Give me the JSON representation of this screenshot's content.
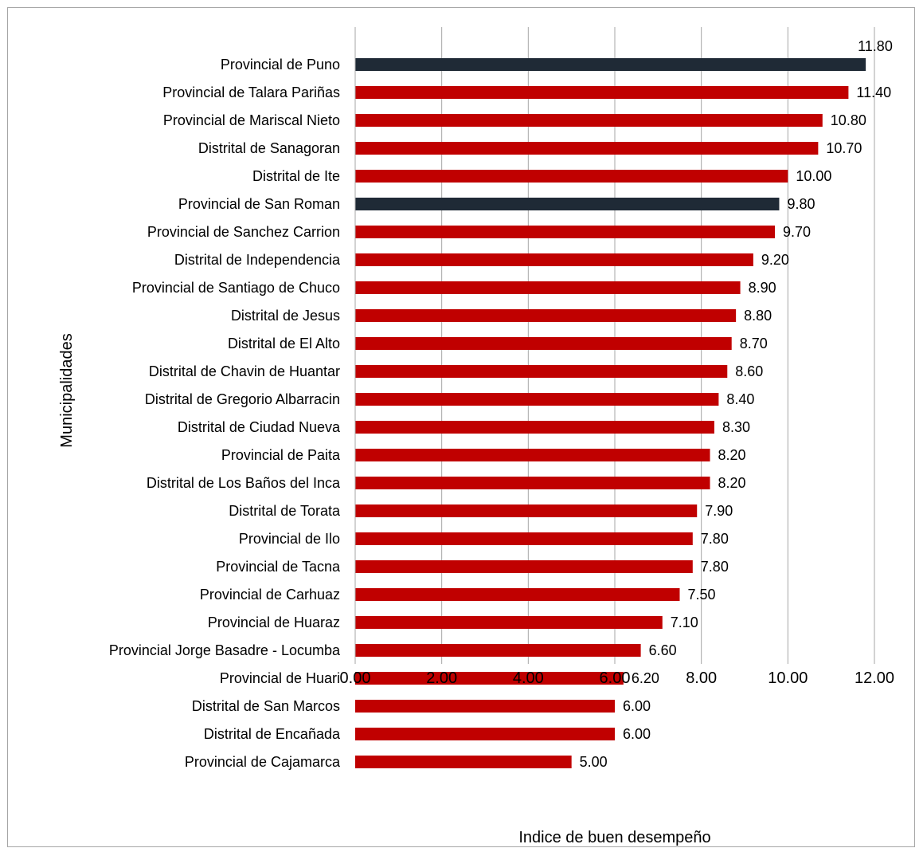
{
  "chart_data": {
    "type": "bar",
    "orientation": "horizontal",
    "title": "",
    "xlabel": "Indice de buen desempeño",
    "ylabel": "Municipalidades",
    "xlim": [
      0,
      12
    ],
    "xticks": [
      "0.00",
      "2.00",
      "4.00",
      "6.00",
      "8.00",
      "10.00",
      "12.00"
    ],
    "grid": "vertical",
    "legend": "none",
    "colors": {
      "default": "#c00000",
      "highlight": "#1f2a36",
      "grid": "#a6a6a6"
    },
    "categories": [
      "Provincial de Puno",
      "Provincial de Talara Pariñas",
      "Provincial de Mariscal Nieto",
      "Distrital de Sanagoran",
      "Distrital de Ite",
      "Provincial de San Roman",
      "Provincial de Sanchez Carrion",
      "Distrital de Independencia",
      "Provincial de Santiago de Chuco",
      "Distrital de Jesus",
      "Distrital de El Alto",
      "Distrital de Chavin de Huantar",
      "Distrital de Gregorio Albarracin",
      "Distrital de Ciudad Nueva",
      "Provincial de Paita",
      "Distrital de Los Baños del Inca",
      "Distrital de Torata",
      "Provincial de Ilo",
      "Provincial de Tacna",
      "Provincial de Carhuaz",
      "Provincial de Huaraz",
      "Provincial Jorge Basadre - Locumba",
      "Provincial de Huari",
      "Distrital de San Marcos",
      "Distrital de Encañada",
      "Provincial de Cajamarca"
    ],
    "values": [
      11.8,
      11.4,
      10.8,
      10.7,
      10.0,
      9.8,
      9.7,
      9.2,
      8.9,
      8.8,
      8.7,
      8.6,
      8.4,
      8.3,
      8.2,
      8.2,
      7.9,
      7.8,
      7.8,
      7.5,
      7.1,
      6.6,
      6.2,
      6.0,
      6.0,
      5.0
    ],
    "value_labels": [
      "11.80",
      "11.40",
      "10.80",
      "10.70",
      "10.00",
      "9.80",
      "9.70",
      "9.20",
      "8.90",
      "8.80",
      "8.70",
      "8.60",
      "8.40",
      "8.30",
      "8.20",
      "8.20",
      "7.90",
      "7.80",
      "7.80",
      "7.50",
      "7.10",
      "6.60",
      "6.20",
      "6.00",
      "6.00",
      "5.00"
    ],
    "highlighted": [
      "Provincial de Puno",
      "Provincial de San Roman"
    ]
  }
}
